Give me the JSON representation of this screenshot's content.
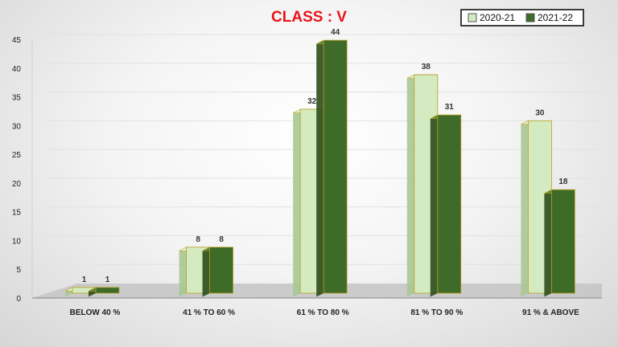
{
  "chart_data": {
    "type": "bar",
    "title": "CLASS : V",
    "categories": [
      "BELOW 40 %",
      "41 % TO 60 %",
      "61 % TO 80 %",
      "81 % TO 90 %",
      "91 % & ABOVE"
    ],
    "series": [
      {
        "name": "2020-21",
        "values": [
          1,
          8,
          32,
          38,
          30
        ]
      },
      {
        "name": "2021-22",
        "values": [
          1,
          8,
          44,
          31,
          18
        ]
      }
    ],
    "ylim": [
      0,
      45
    ],
    "yticks": [
      0,
      5,
      10,
      15,
      20,
      25,
      30,
      35,
      40,
      45
    ],
    "grid": true,
    "legend": "top-right"
  },
  "colors": {
    "title": "#e8141b",
    "series_front": [
      "#d4eac0",
      "#3f6b28"
    ],
    "series_side": [
      "#a9c892",
      "#2c4d1b"
    ],
    "series_top": [
      "#e6f4d8",
      "#57853a"
    ],
    "bar_edge": "#b8a01e",
    "floor": "#c4c4c4",
    "grid": "#e2e2e2",
    "axis": "#888888"
  }
}
